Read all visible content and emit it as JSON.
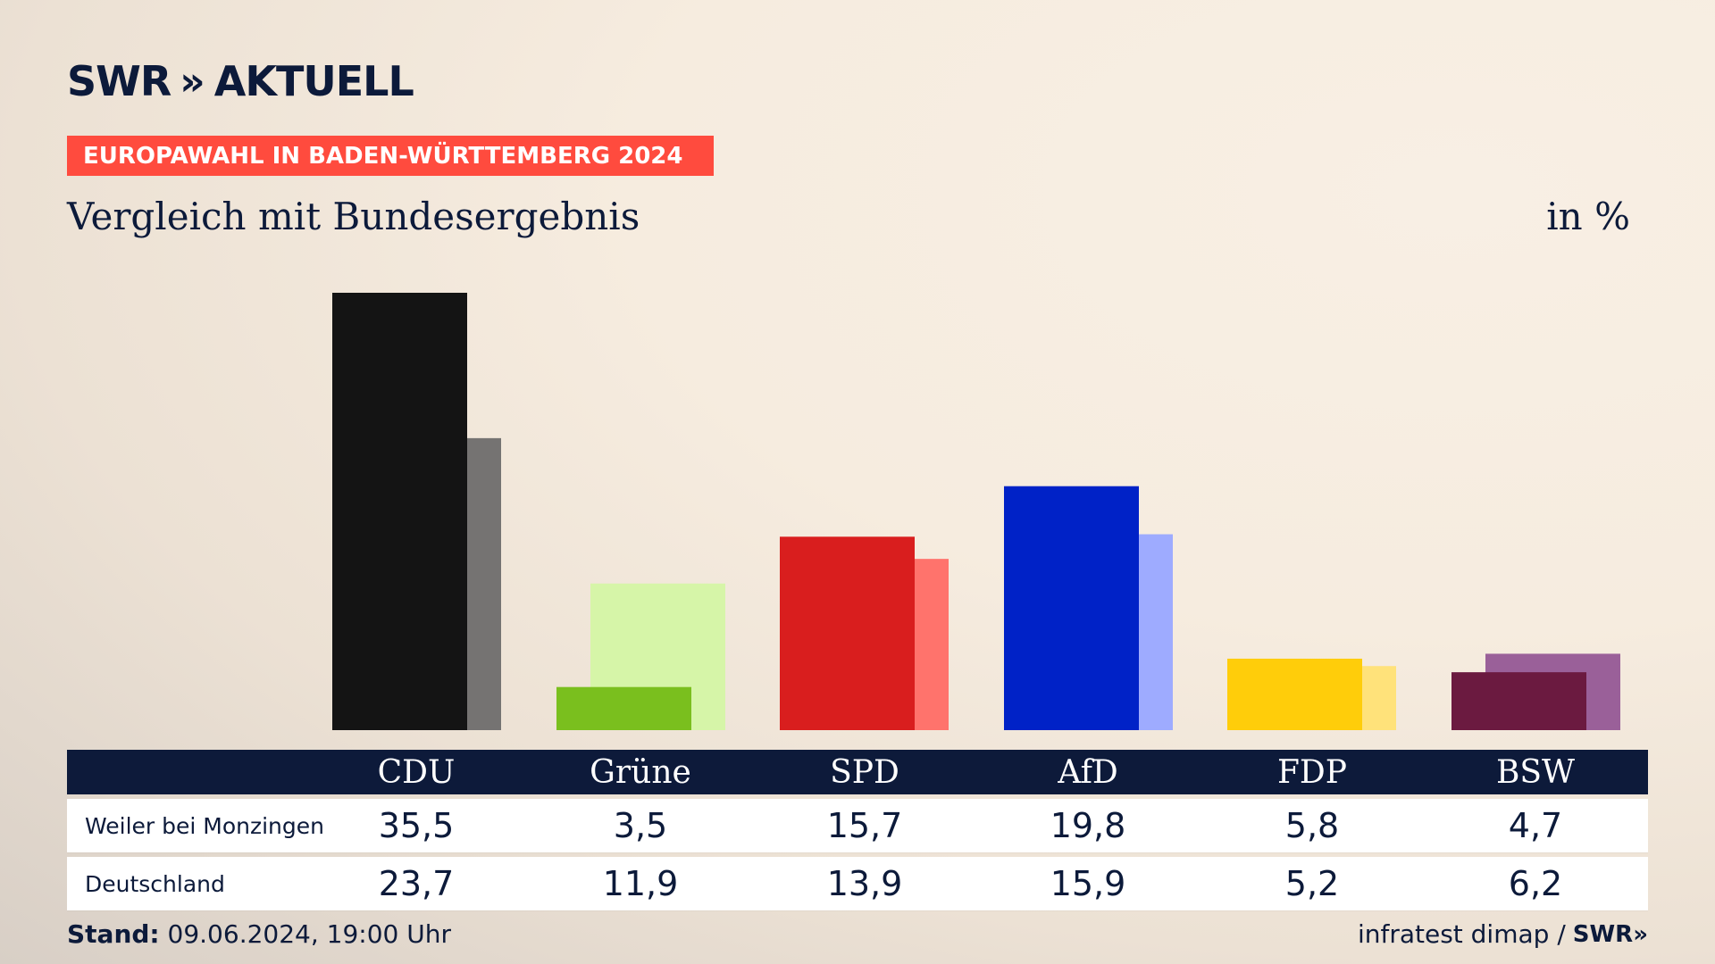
{
  "brand": {
    "logo_text": "SWR",
    "logo_chevrons": "»",
    "logo_suffix": "AKTUELL"
  },
  "kicker": "EUROPAWAHL IN BADEN-WÜRTTEMBERG 2024",
  "subtitle": "Vergleich mit Bundesergebnis",
  "unit": "in %",
  "chart_data": {
    "type": "bar",
    "categories": [
      "CDU",
      "Grüne",
      "SPD",
      "AfD",
      "FDP",
      "BSW"
    ],
    "series": [
      {
        "name": "Weiler bei Monzingen",
        "values": [
          35.5,
          3.5,
          15.7,
          19.8,
          5.8,
          4.7
        ]
      },
      {
        "name": "Deutschland",
        "values": [
          23.7,
          11.9,
          13.9,
          15.9,
          5.2,
          6.2
        ]
      }
    ],
    "colors": {
      "primary": [
        "#141414",
        "#7abf1e",
        "#d91e1e",
        "#0022c7",
        "#ffcd0a",
        "#6b1a40"
      ],
      "secondary": [
        "#757372",
        "#d6f5a8",
        "#ff736c",
        "#9eabff",
        "#ffe27a",
        "#9a6099"
      ]
    },
    "ylim": [
      0,
      35.5
    ]
  },
  "table": {
    "headers": [
      "CDU",
      "Grüne",
      "SPD",
      "AfD",
      "FDP",
      "BSW"
    ],
    "rows": [
      {
        "label": "Weiler bei Monzingen",
        "values": [
          "35,5",
          "3,5",
          "15,7",
          "19,8",
          "5,8",
          "4,7"
        ]
      },
      {
        "label": "Deutschland",
        "values": [
          "23,7",
          "11,9",
          "13,9",
          "15,9",
          "5,2",
          "6,2"
        ]
      }
    ]
  },
  "footer": {
    "stand_label": "Stand:",
    "stand_value": "09.06.2024, 19:00 Uhr",
    "source": "infratest dimap /",
    "source_logo": "SWR»"
  }
}
